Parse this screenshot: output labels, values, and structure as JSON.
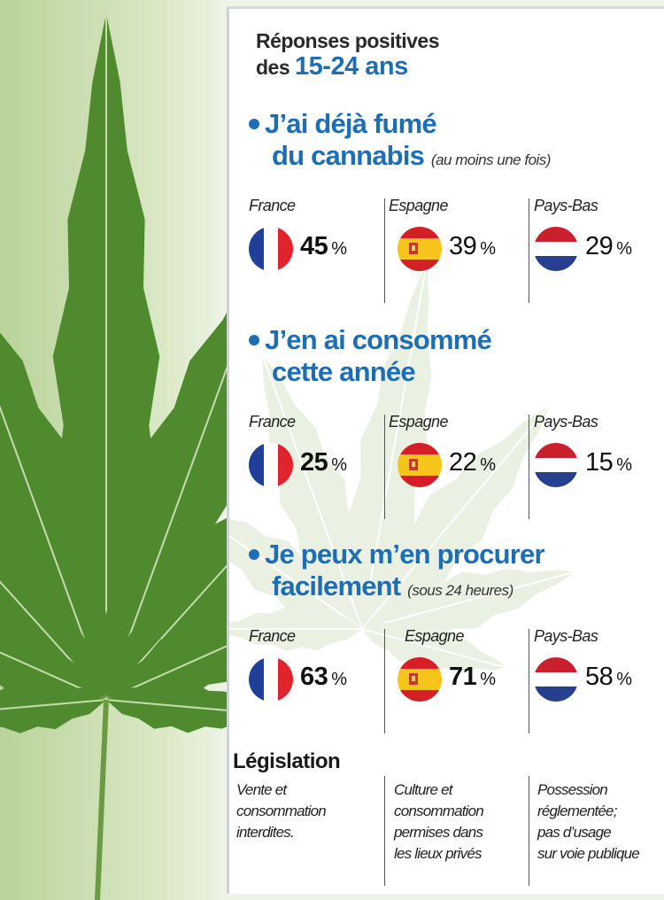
{
  "intro": {
    "line1": "Réponses positives",
    "line2_prefix": "des",
    "age": "15-24 ans"
  },
  "chart_data": {
    "type": "table",
    "unit": "%",
    "countries": [
      "France",
      "Espagne",
      "Pays-Bas"
    ],
    "questions": [
      {
        "title_line1": "J’ai déjà fumé",
        "title_line2": "du cannabis",
        "note": "(au moins une fois)",
        "values": [
          45,
          39,
          29
        ]
      },
      {
        "title_line1": "J’en ai consommé",
        "title_line2": "cette année",
        "note": "",
        "values": [
          25,
          22,
          15
        ]
      },
      {
        "title_line1": "Je peux m’en procurer",
        "title_line2": "facilement",
        "note": "(sous 24 heures)",
        "values": [
          63,
          71,
          58
        ]
      }
    ]
  },
  "legislation": {
    "title": "Législation",
    "columns": [
      [
        "Vente et",
        "consommation",
        "interdites."
      ],
      [
        "Culture et",
        "consommation",
        "permises dans",
        "les lieux privés"
      ],
      [
        "Possession",
        "réglementée;",
        "pas d’usage",
        "sur voie publique"
      ]
    ]
  },
  "colors": {
    "accent": "#1e6eb6",
    "leaf": "#4f8a2e"
  },
  "icons": [
    "cannabis-leaf",
    "flag-france",
    "flag-spain",
    "flag-netherlands"
  ]
}
